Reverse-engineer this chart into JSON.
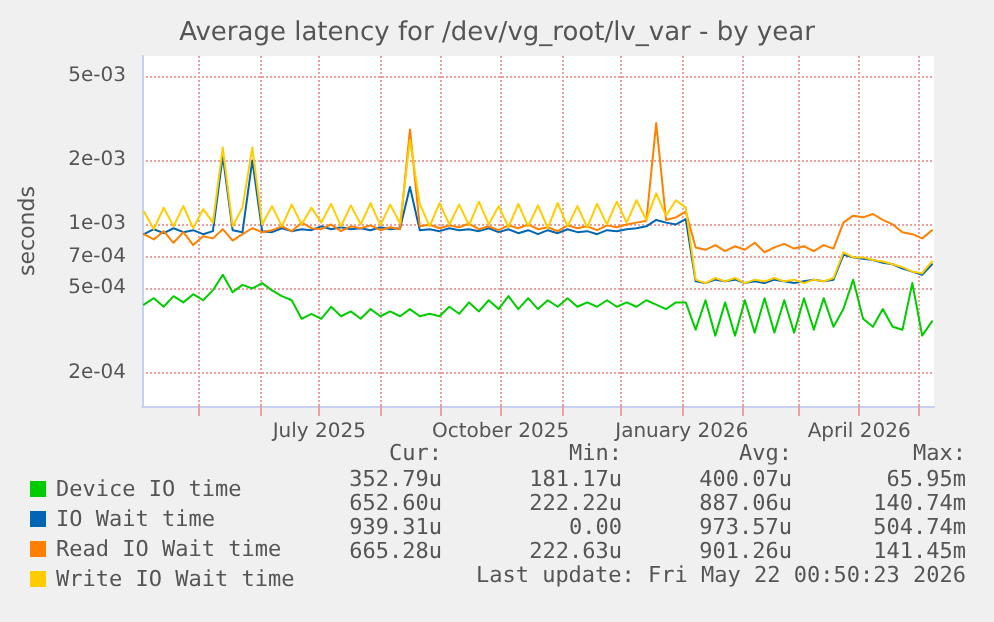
{
  "chart_data": {
    "type": "line",
    "title": "Average latency for /dev/vg_root/lv_var - by year",
    "ylabel": "seconds",
    "log": "y",
    "grid": true,
    "legend": "bottom",
    "marker": "none",
    "line_style": "solid",
    "xlim": [
      "2025-04-02",
      "2026-05-09"
    ],
    "xticks": [
      {
        "value": "2025-05-01",
        "label": null
      },
      {
        "value": "2025-06-01",
        "label": null
      },
      {
        "value": "2025-07-01",
        "label": "July 2025"
      },
      {
        "value": "2025-08-01",
        "label": null
      },
      {
        "value": "2025-09-01",
        "label": null
      },
      {
        "value": "2025-10-01",
        "label": "October 2025"
      },
      {
        "value": "2025-11-01",
        "label": null
      },
      {
        "value": "2025-12-01",
        "label": null
      },
      {
        "value": "2026-01-01",
        "label": "January 2026"
      },
      {
        "value": "2026-02-01",
        "label": null
      },
      {
        "value": "2026-03-01",
        "label": null
      },
      {
        "value": "2026-04-01",
        "label": "April 2026"
      },
      {
        "value": "2026-05-01",
        "label": null
      }
    ],
    "ylim": [
      0.00014,
      0.0062
    ],
    "yticks": [
      {
        "value": 0.0002,
        "label": "2e-04"
      },
      {
        "value": 0.0005,
        "label": "5e-04"
      },
      {
        "value": 0.0007,
        "label": "7e-04"
      },
      {
        "value": 0.001,
        "label": "1e-03"
      },
      {
        "value": 0.002,
        "label": "2e-03"
      },
      {
        "value": 0.005,
        "label": "5e-03"
      }
    ],
    "x": [
      "2025-04-03",
      "2025-04-08",
      "2025-04-13",
      "2025-04-18",
      "2025-04-23",
      "2025-04-28",
      "2025-05-03",
      "2025-05-08",
      "2025-05-13",
      "2025-05-18",
      "2025-05-23",
      "2025-05-28",
      "2025-06-02",
      "2025-06-07",
      "2025-06-12",
      "2025-06-17",
      "2025-06-22",
      "2025-06-27",
      "2025-07-02",
      "2025-07-07",
      "2025-07-12",
      "2025-07-17",
      "2025-07-22",
      "2025-07-27",
      "2025-08-01",
      "2025-08-06",
      "2025-08-11",
      "2025-08-16",
      "2025-08-21",
      "2025-08-26",
      "2025-08-31",
      "2025-09-05",
      "2025-09-10",
      "2025-09-15",
      "2025-09-20",
      "2025-09-25",
      "2025-09-30",
      "2025-10-05",
      "2025-10-10",
      "2025-10-15",
      "2025-10-20",
      "2025-10-25",
      "2025-10-30",
      "2025-11-04",
      "2025-11-09",
      "2025-11-14",
      "2025-11-19",
      "2025-11-24",
      "2025-11-29",
      "2025-12-04",
      "2025-12-09",
      "2025-12-14",
      "2025-12-19",
      "2025-12-24",
      "2025-12-29",
      "2026-01-03",
      "2026-01-08",
      "2026-01-13",
      "2026-01-18",
      "2026-01-23",
      "2026-01-28",
      "2026-02-02",
      "2026-02-07",
      "2026-02-12",
      "2026-02-17",
      "2026-02-22",
      "2026-02-27",
      "2026-03-04",
      "2026-03-09",
      "2026-03-14",
      "2026-03-19",
      "2026-03-24",
      "2026-03-29",
      "2026-04-03",
      "2026-04-08",
      "2026-04-13",
      "2026-04-18",
      "2026-04-23",
      "2026-04-28",
      "2026-05-03",
      "2026-05-08"
    ],
    "series": [
      {
        "name": "Device IO time",
        "color": "#00cc00",
        "values": [
          0.00042,
          0.00045,
          0.00041,
          0.00046,
          0.00043,
          0.00047,
          0.00044,
          0.00049,
          0.00058,
          0.00048,
          0.00052,
          0.0005,
          0.00053,
          0.00049,
          0.00046,
          0.00044,
          0.00036,
          0.00038,
          0.00036,
          0.00041,
          0.00037,
          0.00039,
          0.00036,
          0.0004,
          0.00037,
          0.00039,
          0.00037,
          0.0004,
          0.00037,
          0.00038,
          0.00037,
          0.00041,
          0.00038,
          0.00043,
          0.00039,
          0.00044,
          0.0004,
          0.00046,
          0.0004,
          0.00045,
          0.0004,
          0.00044,
          0.00041,
          0.00045,
          0.00041,
          0.00043,
          0.00041,
          0.00044,
          0.00041,
          0.00043,
          0.00041,
          0.00044,
          0.00042,
          0.0004,
          0.00043,
          0.00043,
          0.00032,
          0.00044,
          0.0003,
          0.00043,
          0.0003,
          0.00044,
          0.00031,
          0.00045,
          0.00031,
          0.00044,
          0.00031,
          0.00045,
          0.00032,
          0.00045,
          0.00033,
          0.0004,
          0.00055,
          0.00036,
          0.00033,
          0.0004,
          0.00033,
          0.00032,
          0.00053,
          0.0003,
          0.00035
        ]
      },
      {
        "name": "IO Wait time",
        "color": "#0066b3",
        "values": [
          0.0009,
          0.00095,
          0.00091,
          0.00096,
          0.00092,
          0.00094,
          0.0009,
          0.00093,
          0.0021,
          0.00094,
          0.00092,
          0.002,
          0.00093,
          0.00092,
          0.00096,
          0.00093,
          0.00095,
          0.00094,
          0.00098,
          0.00095,
          0.00097,
          0.00095,
          0.00096,
          0.00094,
          0.00097,
          0.00095,
          0.00096,
          0.0015,
          0.00094,
          0.00095,
          0.00093,
          0.00096,
          0.00094,
          0.00095,
          0.00093,
          0.00096,
          0.00092,
          0.00095,
          0.00091,
          0.00094,
          0.0009,
          0.00094,
          0.00091,
          0.00095,
          0.00092,
          0.00093,
          0.0009,
          0.00094,
          0.00093,
          0.00095,
          0.00096,
          0.00098,
          0.00105,
          0.00102,
          0.001,
          0.00106,
          0.00054,
          0.00053,
          0.00055,
          0.00054,
          0.00055,
          0.00053,
          0.00054,
          0.00053,
          0.00055,
          0.00054,
          0.00053,
          0.00054,
          0.00055,
          0.00054,
          0.00055,
          0.00072,
          0.0007,
          0.00069,
          0.00068,
          0.00066,
          0.00065,
          0.00062,
          0.0006,
          0.00058,
          0.00065
        ]
      },
      {
        "name": "Read IO Wait time",
        "color": "#ff8000",
        "values": [
          0.0009,
          0.00085,
          0.00093,
          0.00082,
          0.00092,
          0.0008,
          0.00088,
          0.00086,
          0.00095,
          0.00084,
          0.0009,
          0.00096,
          0.00092,
          0.00094,
          0.00098,
          0.00093,
          0.00102,
          0.00096,
          0.00095,
          0.001,
          0.00093,
          0.00098,
          0.00096,
          0.00099,
          0.00094,
          0.00097,
          0.00095,
          0.0028,
          0.00098,
          0.001,
          0.00096,
          0.00099,
          0.00097,
          0.00101,
          0.00095,
          0.00098,
          0.00094,
          0.00099,
          0.00096,
          0.001,
          0.00095,
          0.00097,
          0.00093,
          0.00099,
          0.00096,
          0.00098,
          0.00094,
          0.00099,
          0.00097,
          0.001,
          0.00102,
          0.00104,
          0.003,
          0.00105,
          0.00108,
          0.00115,
          0.00078,
          0.00076,
          0.0008,
          0.00075,
          0.00079,
          0.00076,
          0.00082,
          0.00074,
          0.00078,
          0.00081,
          0.00077,
          0.00079,
          0.00075,
          0.0008,
          0.00077,
          0.00102,
          0.0011,
          0.00108,
          0.00112,
          0.00105,
          0.001,
          0.00092,
          0.0009,
          0.00086,
          0.00094
        ]
      },
      {
        "name": "Write IO Wait time",
        "color": "#ffcc00",
        "values": [
          0.00115,
          0.00095,
          0.0012,
          0.00098,
          0.00122,
          0.00096,
          0.00118,
          0.00102,
          0.0023,
          0.00098,
          0.0012,
          0.0023,
          0.001,
          0.00122,
          0.00098,
          0.00124,
          0.001,
          0.0012,
          0.00102,
          0.00125,
          0.00098,
          0.00123,
          0.001,
          0.00126,
          0.00099,
          0.00124,
          0.00101,
          0.0025,
          0.00125,
          0.00098,
          0.00126,
          0.001,
          0.00124,
          0.00099,
          0.00128,
          0.001,
          0.00122,
          0.00097,
          0.00125,
          0.00098,
          0.00123,
          0.00096,
          0.00126,
          0.00098,
          0.00122,
          0.00097,
          0.00125,
          0.001,
          0.00128,
          0.00102,
          0.0013,
          0.00105,
          0.0014,
          0.0011,
          0.0013,
          0.0012,
          0.00055,
          0.00053,
          0.00056,
          0.00054,
          0.00056,
          0.00053,
          0.00055,
          0.00054,
          0.00056,
          0.00054,
          0.00055,
          0.00053,
          0.00055,
          0.00054,
          0.00056,
          0.00074,
          0.0007,
          0.0007,
          0.00068,
          0.00067,
          0.00065,
          0.00063,
          0.0006,
          0.00059,
          0.00067
        ]
      }
    ],
    "annotations": [
      "Cur:",
      "Min:",
      "Avg:",
      "Max:",
      "352.79u",
      "181.17u",
      "400.07u",
      "65.95m",
      "652.60u",
      "222.22u",
      "887.06u",
      "140.74m",
      "939.31u",
      "0.00",
      "973.57u",
      "504.74m",
      "665.28u",
      "222.63u",
      "901.26u",
      "141.45m",
      "Last update: Fri May 22 00:50:23 2026"
    ]
  }
}
